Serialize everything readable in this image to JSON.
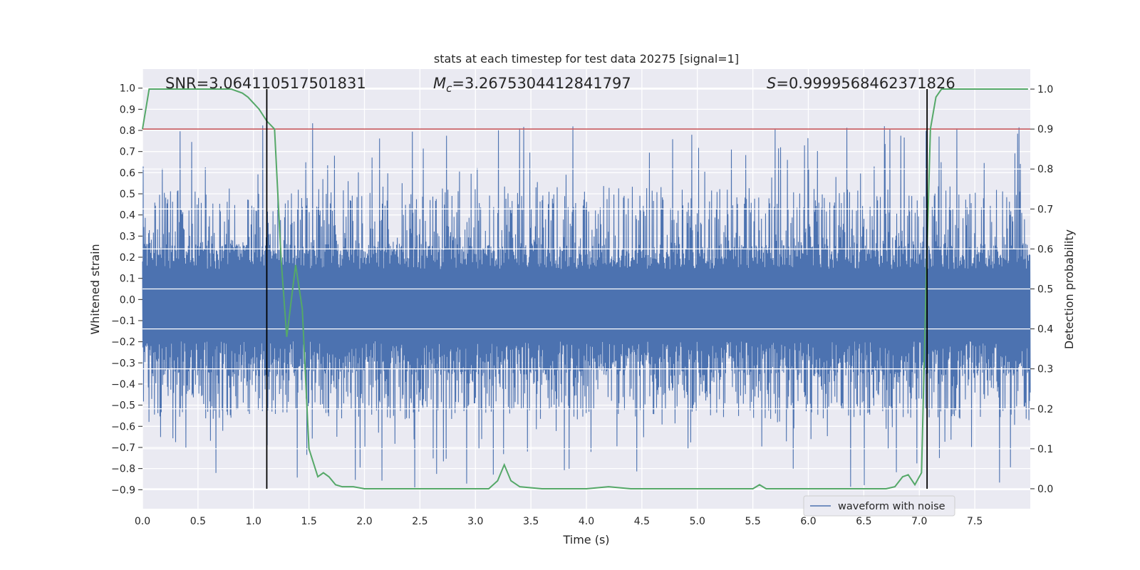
{
  "chart_data": {
    "type": "line",
    "title": "stats at each timestep for test data 20275 [signal=1]",
    "xlabel": "Time (s)",
    "ylabel": "Whitened strain",
    "y2label": "Detection probability",
    "xlim": [
      0,
      8
    ],
    "ylim": [
      -0.99,
      1.09
    ],
    "y2lim": [
      -0.05,
      1.05
    ],
    "x_ticks": [
      0.0,
      0.5,
      1.0,
      1.5,
      2.0,
      2.5,
      3.0,
      3.5,
      4.0,
      4.5,
      5.0,
      5.5,
      6.0,
      6.5,
      7.0,
      7.5
    ],
    "x_tick_labels": [
      "0.0",
      "0.5",
      "1.0",
      "1.5",
      "2.0",
      "2.5",
      "3.0",
      "3.5",
      "4.0",
      "4.5",
      "5.0",
      "5.5",
      "6.0",
      "6.5",
      "7.0",
      "7.5"
    ],
    "y_ticks": [
      1.0,
      0.9,
      0.8,
      0.7,
      0.6,
      0.5,
      0.4,
      0.3,
      0.2,
      0.1,
      0.0,
      -0.1,
      -0.2,
      -0.3,
      -0.4,
      -0.5,
      -0.6,
      -0.7,
      -0.8,
      -0.9
    ],
    "y_tick_labels": [
      "1.0",
      "0.9",
      "0.8",
      "0.7",
      "0.6",
      "0.5",
      "0.4",
      "0.3",
      "0.2",
      "0.1",
      "0.0",
      "−0.1",
      "−0.2",
      "−0.3",
      "−0.4",
      "−0.5",
      "−0.6",
      "−0.7",
      "−0.8",
      "−0.9"
    ],
    "y2_ticks": [
      1.0,
      0.9,
      0.8,
      0.7,
      0.6,
      0.5,
      0.4,
      0.3,
      0.2,
      0.1,
      0.0
    ],
    "y2_tick_labels": [
      "1.0",
      "0.9",
      "0.8",
      "0.7",
      "0.6",
      "0.5",
      "0.4",
      "0.3",
      "0.2",
      "0.1",
      "0.0"
    ],
    "annotations": {
      "snr": "SNR=3.064110517501831",
      "mc_symbol": "M",
      "mc_sub": "c",
      "mc_value": "=3.2675304412841797",
      "s_symbol": "S",
      "s_value": "=0.9999568462371826"
    },
    "series": [
      {
        "name": "waveform with noise",
        "axis": "left",
        "color": "#4c72b0",
        "x_range": [
          0,
          8
        ],
        "core_band": [
          -0.33,
          0.24
        ],
        "typical_peaks": [
          -0.5,
          0.45
        ],
        "extreme_peaks": [
          -0.89,
          0.84
        ]
      },
      {
        "axis": "right",
        "color": "#55a868",
        "x": [
          0.0,
          0.06,
          0.12,
          0.2,
          0.3,
          0.4,
          0.5,
          0.6,
          0.7,
          0.8,
          0.9,
          0.95,
          1.05,
          1.12,
          1.19,
          1.25,
          1.3,
          1.38,
          1.44,
          1.5,
          1.58,
          1.63,
          1.68,
          1.74,
          1.8,
          1.9,
          2.0,
          2.2,
          2.5,
          2.8,
          3.0,
          3.12,
          3.2,
          3.26,
          3.32,
          3.4,
          3.6,
          4.0,
          4.2,
          4.4,
          4.8,
          5.0,
          5.2,
          5.5,
          5.56,
          5.62,
          5.8,
          6.0,
          6.4,
          6.7,
          6.78,
          6.85,
          6.9,
          6.96,
          7.02,
          7.06,
          7.1,
          7.15,
          7.2,
          7.4,
          7.6,
          7.8,
          7.98
        ],
        "y": [
          0.9,
          1.0,
          1.0,
          1.0,
          1.0,
          1.0,
          1.0,
          1.0,
          1.0,
          1.0,
          0.99,
          0.98,
          0.95,
          0.92,
          0.9,
          0.57,
          0.38,
          0.56,
          0.45,
          0.1,
          0.03,
          0.04,
          0.03,
          0.01,
          0.005,
          0.005,
          0.0,
          0.0,
          0.0,
          0.0,
          0.0,
          0.0,
          0.02,
          0.06,
          0.02,
          0.005,
          0.0,
          0.0,
          0.005,
          0.0,
          0.0,
          0.0,
          0.0,
          0.0,
          0.01,
          0.0,
          0.0,
          0.0,
          0.0,
          0.0,
          0.005,
          0.03,
          0.035,
          0.01,
          0.04,
          0.5,
          0.9,
          0.98,
          1.0,
          1.0,
          1.0,
          1.0,
          1.0
        ]
      }
    ],
    "hlines": [
      {
        "axis": "right",
        "y": 0.9,
        "color": "#c44e52"
      }
    ],
    "vlines": [
      {
        "x": 1.12,
        "y_from": 0.0,
        "y_to": 1.0,
        "axis": "right",
        "color": "#000000"
      },
      {
        "x": 7.07,
        "y_from": 0.0,
        "y_to": 1.0,
        "axis": "right",
        "color": "#000000"
      }
    ],
    "legend": {
      "position": "lower-right"
    },
    "grid": true,
    "background": "#eaeaf2"
  }
}
